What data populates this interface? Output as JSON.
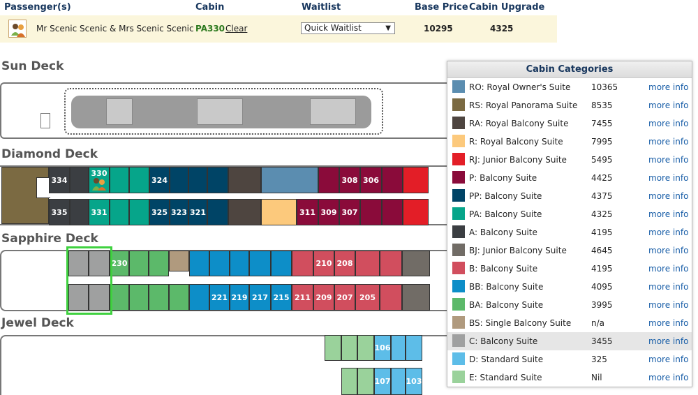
{
  "passenger_table": {
    "headers": [
      "Passenger(s)",
      "Cabin",
      "Waitlist",
      "Base Price",
      "Cabin Upgrade"
    ],
    "passenger_name": "Mr Scenic Scenic & Mrs Scenic Scenic",
    "cabin": "PA330",
    "clear_label": "Clear",
    "waitlist_value": "Quick Waitlist",
    "base_price": "10295",
    "cabin_upgrade": "4325"
  },
  "decks": {
    "sun": "Sun Deck",
    "diamond": "Diamond Deck",
    "sapphire": "Sapphire Deck",
    "jewel": "Jewel Deck"
  },
  "cabin_labels": {
    "diamond_top": [
      "334",
      "330",
      "324",
      "308",
      "306"
    ],
    "diamond_bottom": [
      "335",
      "331",
      "325",
      "323",
      "321",
      "311",
      "309",
      "307"
    ],
    "sapphire_top": [
      "230",
      "210",
      "208"
    ],
    "sapphire_bottom": [
      "221",
      "219",
      "217",
      "215",
      "211",
      "209",
      "207",
      "205"
    ],
    "jewel": [
      "106",
      "107",
      "103"
    ]
  },
  "categories_panel": {
    "title": "Cabin Categories",
    "more_label": "more info",
    "rows": [
      {
        "name": "RO: Royal Owner's Suite",
        "price": "10365",
        "color": "#5b8db0"
      },
      {
        "name": "RS: Royal Panorama Suite",
        "price": "8535",
        "color": "#7b6a42"
      },
      {
        "name": "RA: Royal Balcony Suite",
        "price": "7455",
        "color": "#4e4540"
      },
      {
        "name": "R: Royal Balcony Suite",
        "price": "7995",
        "color": "#fcc97c"
      },
      {
        "name": "RJ: Junior Balcony Suite",
        "price": "5495",
        "color": "#e31e27"
      },
      {
        "name": "P: Balcony Suite",
        "price": "4425",
        "color": "#8a0b3a"
      },
      {
        "name": "PP: Balcony Suite",
        "price": "4375",
        "color": "#004466"
      },
      {
        "name": "PA: Balcony Suite",
        "price": "4325",
        "color": "#06a58a"
      },
      {
        "name": "A: Balcony Suite",
        "price": "4195",
        "color": "#3b3e42"
      },
      {
        "name": "BJ: Junior Balcony Suite",
        "price": "4645",
        "color": "#716c66"
      },
      {
        "name": "B: Balcony Suite",
        "price": "4195",
        "color": "#d14e5e"
      },
      {
        "name": "BB: Balcony Suite",
        "price": "4095",
        "color": "#0d8ec8"
      },
      {
        "name": "BA: Balcony Suite",
        "price": "3995",
        "color": "#5cb96a"
      },
      {
        "name": "BS: Single Balcony Suite",
        "price": "n/a",
        "color": "#b09a7e"
      },
      {
        "name": "C: Balcony Suite",
        "price": "3455",
        "color": "#9fa0a0"
      },
      {
        "name": "D: Standard Suite",
        "price": "325",
        "color": "#5dbde8"
      },
      {
        "name": "E: Standard Suite",
        "price": "Nil",
        "color": "#9ad29b"
      }
    ]
  }
}
